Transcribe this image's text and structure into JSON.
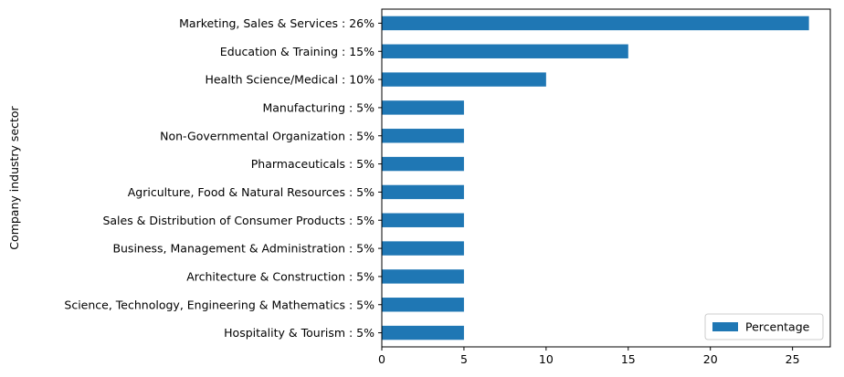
{
  "chart_data": {
    "type": "bar",
    "orientation": "horizontal",
    "categories": [
      "Marketing, Sales & Services : 26%",
      "Education & Training : 15%",
      "Health Science/Medical : 10%",
      "Manufacturing : 5%",
      "Non-Governmental Organization : 5%",
      "Pharmaceuticals : 5%",
      "Agriculture, Food & Natural Resources : 5%",
      "Sales & Distribution of Consumer Products : 5%",
      "Business, Management & Administration : 5%",
      "Architecture & Construction : 5%",
      "Science, Technology, Engineering & Mathematics : 5%",
      "Hospitality & Tourism : 5%"
    ],
    "series": [
      {
        "name": "Percentage",
        "values": [
          26,
          15,
          10,
          5,
          5,
          5,
          5,
          5,
          5,
          5,
          5,
          5
        ]
      }
    ],
    "title": "",
    "xlabel": "",
    "ylabel": "Company industry sector",
    "xlim": [
      0,
      27.3
    ],
    "xticks": [
      0,
      5,
      10,
      15,
      20,
      25
    ],
    "grid": false,
    "legend": "lower-right",
    "colors": {
      "bar": "#1f77b4"
    }
  }
}
